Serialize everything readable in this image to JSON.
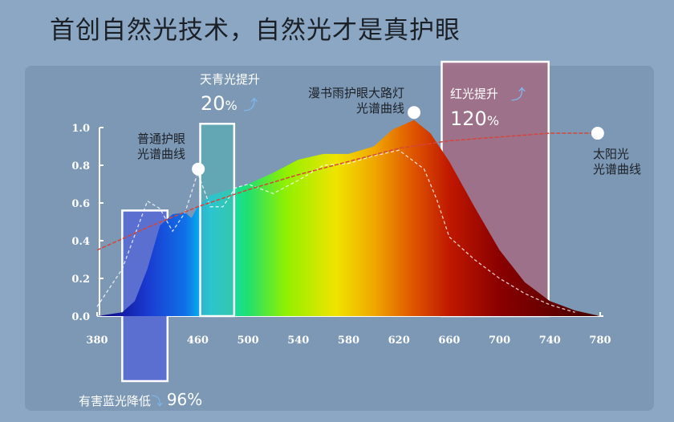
{
  "title": "首创自然光技术，自然光才是真护眼",
  "annotations": {
    "cyan_label": "天青光提升",
    "cyan_value": "20",
    "cyan_unit": "%",
    "red_label": "红光提升",
    "red_value": "120",
    "red_unit": "%",
    "blue_label": "有害蓝光降低",
    "blue_value": "96%",
    "ordinary_line1": "普通护眼",
    "ordinary_line2": "光谱曲线",
    "product_line1": "漫书雨护眼大路灯",
    "product_line2": "光谱曲线",
    "sun_line1": "太阳光",
    "sun_line2": "光谱曲线"
  },
  "chart_data": {
    "type": "area",
    "title": "首创自然光技术，自然光才是真护眼",
    "xlabel": "",
    "ylabel": "",
    "xlim": [
      380,
      780
    ],
    "ylim": [
      0,
      1.0
    ],
    "xticks": [
      "380",
      "420",
      "460",
      "500",
      "540",
      "580",
      "620",
      "660",
      "700",
      "740",
      "780"
    ],
    "yticks": [
      "0.0",
      "0.2",
      "0.4",
      "0.6",
      "0.8",
      "1.0"
    ],
    "series": [
      {
        "name": "漫书雨护眼大路灯光谱曲线",
        "style": "rainbow-fill",
        "x": [
          380,
          400,
          410,
          420,
          430,
          440,
          450,
          455,
          460,
          470,
          480,
          490,
          500,
          520,
          540,
          560,
          580,
          600,
          615,
          632,
          645,
          660,
          680,
          700,
          720,
          740,
          760,
          780
        ],
        "y": [
          0.0,
          0.02,
          0.08,
          0.25,
          0.48,
          0.54,
          0.55,
          0.52,
          0.58,
          0.64,
          0.66,
          0.68,
          0.7,
          0.76,
          0.83,
          0.86,
          0.86,
          0.9,
          0.99,
          1.04,
          0.97,
          0.82,
          0.58,
          0.35,
          0.18,
          0.08,
          0.03,
          0.0
        ]
      },
      {
        "name": "普通护眼光谱曲线",
        "style": "dashed-white",
        "x": [
          380,
          400,
          420,
          430,
          440,
          450,
          460,
          470,
          480,
          490,
          500,
          520,
          540,
          560,
          580,
          600,
          620,
          640,
          650,
          660,
          680,
          700,
          720,
          740,
          760
        ],
        "y": [
          0.05,
          0.25,
          0.61,
          0.57,
          0.45,
          0.55,
          0.76,
          0.58,
          0.58,
          0.68,
          0.7,
          0.65,
          0.72,
          0.8,
          0.81,
          0.85,
          0.88,
          0.78,
          0.62,
          0.42,
          0.3,
          0.2,
          0.12,
          0.06,
          0.02
        ]
      },
      {
        "name": "太阳光光谱曲线",
        "style": "dashed-red",
        "x": [
          380,
          420,
          460,
          500,
          540,
          580,
          620,
          660,
          700,
          740,
          778
        ],
        "y": [
          0.35,
          0.47,
          0.58,
          0.67,
          0.75,
          0.82,
          0.89,
          0.93,
          0.95,
          0.97,
          0.97
        ]
      }
    ],
    "highlight_bands": [
      {
        "name": "有害蓝光降低",
        "range": [
          400,
          436
        ],
        "change": "-96%"
      },
      {
        "name": "天青光提升",
        "range": [
          462,
          489
        ],
        "change": "+20%"
      },
      {
        "name": "红光提升",
        "range": [
          654,
          739
        ],
        "change": "+120%"
      }
    ],
    "colors": {
      "axis": "#ffffff",
      "sun": "#d4453a",
      "blueband": "#5a6fd0",
      "cyanband": "#5aa8a8",
      "redband": "#a06a80"
    }
  }
}
